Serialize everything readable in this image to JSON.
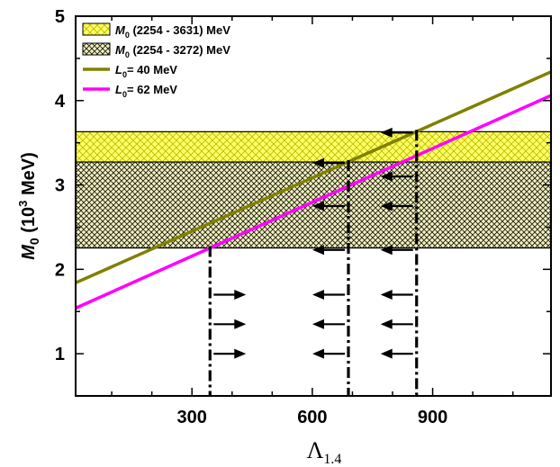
{
  "chart_data": {
    "type": "line",
    "xlabel": "Λ",
    "xlabel_sub": "1.4",
    "ylabel": {
      "var": "M",
      "sub": "0",
      "rest_pre": " (10",
      "sup": "3",
      "rest_post": " MeV)"
    },
    "xlim": [
      10,
      1195
    ],
    "ylim": [
      0.5,
      5
    ],
    "xticks": [
      300,
      600,
      900
    ],
    "yticks": [
      1,
      2,
      3,
      4,
      5
    ],
    "bands": [
      {
        "name_var": "M",
        "name_sub": "0",
        "name_rest": " (2254 - 3631) MeV",
        "y0": 2.254,
        "y1": 3.631,
        "color": "#ffff00",
        "hatch": "#c8c800"
      },
      {
        "name_var": "M",
        "name_sub": "0",
        "name_rest": " (2254 - 3272) MeV",
        "y0": 2.254,
        "y1": 3.272,
        "color": "#000000",
        "hatch": "#000000"
      }
    ],
    "series": [
      {
        "name_var": "L",
        "name_sub": "0",
        "name_rest": "= 40 MeV",
        "color": "#808000",
        "x": [
          10,
          1195
        ],
        "y": [
          1.84,
          4.34
        ]
      },
      {
        "name_var": "L",
        "name_sub": "0",
        "name_rest": "= 62 MeV",
        "color": "#ff00ff",
        "x": [
          10,
          1195
        ],
        "y": [
          1.54,
          4.06
        ]
      }
    ],
    "vertical_markers": [
      {
        "x": 345,
        "y_top": 2.254
      },
      {
        "x": 690,
        "y_top": 3.272
      },
      {
        "x": 860,
        "y_top": 3.631
      }
    ],
    "arrows": [
      {
        "x": 345,
        "y": 1.7,
        "dir": "right"
      },
      {
        "x": 345,
        "y": 1.35,
        "dir": "right"
      },
      {
        "x": 345,
        "y": 1.0,
        "dir": "right"
      },
      {
        "x": 690,
        "y": 3.26,
        "dir": "left"
      },
      {
        "x": 690,
        "y": 2.75,
        "dir": "left"
      },
      {
        "x": 690,
        "y": 2.23,
        "dir": "left"
      },
      {
        "x": 690,
        "y": 1.7,
        "dir": "left"
      },
      {
        "x": 690,
        "y": 1.35,
        "dir": "left"
      },
      {
        "x": 690,
        "y": 1.0,
        "dir": "left"
      },
      {
        "x": 860,
        "y": 3.62,
        "dir": "left"
      },
      {
        "x": 860,
        "y": 3.1,
        "dir": "left"
      },
      {
        "x": 860,
        "y": 2.75,
        "dir": "left"
      },
      {
        "x": 860,
        "y": 2.23,
        "dir": "left"
      },
      {
        "x": 860,
        "y": 1.7,
        "dir": "left"
      },
      {
        "x": 860,
        "y": 1.35,
        "dir": "left"
      },
      {
        "x": 860,
        "y": 1.0,
        "dir": "left"
      }
    ],
    "legend_position": "top-left"
  }
}
